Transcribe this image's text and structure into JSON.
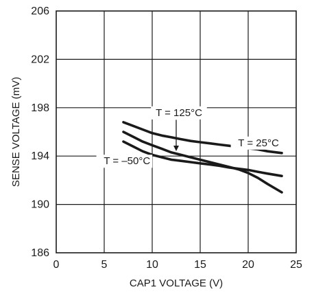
{
  "chart_data": {
    "type": "line",
    "title": "",
    "xlabel": "CAP1 VOLTAGE (V)",
    "ylabel": "SENSE VOLTAGE (mV)",
    "xlim": [
      0,
      25
    ],
    "ylim": [
      186,
      206
    ],
    "xticks": [
      0,
      5,
      10,
      15,
      20,
      25
    ],
    "yticks": [
      186,
      190,
      194,
      198,
      202,
      206
    ],
    "xtick_labels": [
      "0",
      "5",
      "10",
      "15",
      "20",
      "25"
    ],
    "ytick_labels": [
      "186",
      "190",
      "194",
      "198",
      "202",
      "206"
    ],
    "grid": true,
    "series": [
      {
        "name": "T = 25°C",
        "x": [
          7,
          8,
          9,
          10,
          11,
          12,
          13,
          14,
          15,
          16,
          17,
          18,
          19,
          20,
          21,
          22,
          23.5
        ],
        "y": [
          196.8,
          196.5,
          196.2,
          195.9,
          195.7,
          195.55,
          195.4,
          195.25,
          195.15,
          195.05,
          194.95,
          194.85,
          194.75,
          194.65,
          194.55,
          194.4,
          194.25
        ]
      },
      {
        "name": "T = 125°C",
        "x": [
          7,
          8,
          9,
          10,
          11,
          12,
          13,
          14,
          15,
          16,
          17,
          18,
          19,
          20,
          21,
          22,
          23.5
        ],
        "y": [
          196.0,
          195.6,
          195.2,
          194.9,
          194.6,
          194.3,
          194.1,
          193.9,
          193.7,
          193.5,
          193.3,
          193.1,
          192.9,
          192.6,
          192.2,
          191.7,
          191.0
        ]
      },
      {
        "name": "T = –50°C",
        "x": [
          7,
          8,
          9,
          10,
          11,
          12,
          13,
          14,
          15,
          16,
          17,
          18,
          19,
          20,
          21,
          22,
          23.5
        ],
        "y": [
          195.2,
          194.8,
          194.4,
          194.1,
          193.9,
          193.7,
          193.6,
          193.5,
          193.4,
          193.3,
          193.2,
          193.05,
          192.95,
          192.85,
          192.7,
          192.55,
          192.35
        ]
      }
    ],
    "annotations": [
      {
        "text": "T = 125°C",
        "series": "T = 125°C"
      },
      {
        "text": "T = 25°C",
        "series": "T = 25°C"
      },
      {
        "text": "T = –50°C",
        "series": "T = –50°C"
      }
    ]
  }
}
